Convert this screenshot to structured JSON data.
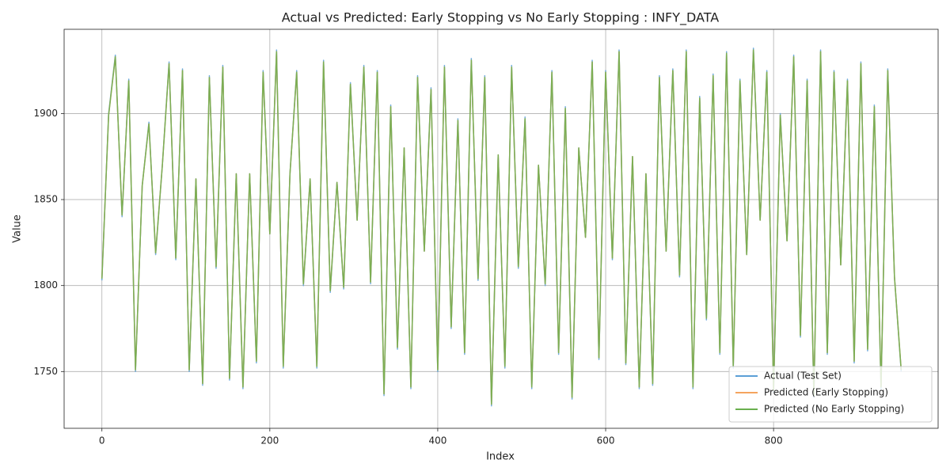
{
  "chart_data": {
    "type": "line",
    "title": "Actual vs Predicted: Early Stopping vs No Early Stopping : INFY_DATA",
    "x_label": "Index",
    "y_label": "Value",
    "x": [
      0,
      8,
      16,
      24,
      32,
      40,
      48,
      56,
      64,
      72,
      80,
      88,
      96,
      104,
      112,
      120,
      128,
      136,
      144,
      152,
      160,
      168,
      176,
      184,
      192,
      200,
      208,
      216,
      224,
      232,
      240,
      248,
      256,
      264,
      272,
      280,
      288,
      296,
      304,
      312,
      320,
      328,
      336,
      344,
      352,
      360,
      368,
      376,
      384,
      392,
      400,
      408,
      416,
      424,
      432,
      440,
      448,
      456,
      464,
      472,
      480,
      488,
      496,
      504,
      512,
      520,
      528,
      536,
      544,
      552,
      560,
      568,
      576,
      584,
      592,
      600,
      608,
      616,
      624,
      632,
      640,
      648,
      656,
      664,
      672,
      680,
      688,
      696,
      704,
      712,
      720,
      728,
      736,
      744,
      752,
      760,
      768,
      776,
      784,
      792,
      800,
      808,
      816,
      824,
      832,
      840,
      848,
      856,
      864,
      872,
      880,
      888,
      896,
      904,
      912,
      920,
      928,
      936,
      944,
      952
    ],
    "series": [
      {
        "name": "Actual (Test Set)",
        "color": "#5b9fd6",
        "values": [
          1803,
          1900,
          1934,
          1840,
          1920,
          1750,
          1858,
          1895,
          1818,
          1870,
          1930,
          1815,
          1926,
          1750,
          1862,
          1742,
          1922,
          1810,
          1928,
          1745,
          1865,
          1740,
          1865,
          1755,
          1925,
          1830,
          1937,
          1752,
          1865,
          1925,
          1800,
          1862,
          1752,
          1931,
          1796,
          1860,
          1798,
          1918,
          1838,
          1928,
          1801,
          1925,
          1736,
          1905,
          1763,
          1880,
          1740,
          1922,
          1820,
          1915,
          1750,
          1928,
          1775,
          1897,
          1760,
          1932,
          1803,
          1922,
          1730,
          1876,
          1752,
          1928,
          1810,
          1898,
          1740,
          1870,
          1800,
          1925,
          1760,
          1904,
          1734,
          1880,
          1828,
          1931,
          1757,
          1925,
          1815,
          1937,
          1754,
          1875,
          1740,
          1865,
          1742,
          1922,
          1820,
          1926,
          1805,
          1937,
          1740,
          1910,
          1780,
          1923,
          1760,
          1936,
          1752,
          1920,
          1818,
          1938,
          1838,
          1925,
          1738,
          1900,
          1826,
          1934,
          1770,
          1920,
          1735,
          1937,
          1760,
          1925,
          1812,
          1920,
          1755,
          1930,
          1762,
          1905,
          1740,
          1926,
          1805,
          1750
        ]
      },
      {
        "name": "Predicted (Early Stopping)",
        "color": "#f5a45e",
        "values": [
          1804,
          1899,
          1933,
          1841,
          1919,
          1751,
          1858,
          1894,
          1819,
          1870,
          1929,
          1816,
          1925,
          1751,
          1862,
          1743,
          1921,
          1811,
          1927,
          1746,
          1865,
          1741,
          1865,
          1756,
          1924,
          1830,
          1936,
          1753,
          1865,
          1924,
          1801,
          1862,
          1753,
          1930,
          1797,
          1860,
          1799,
          1917,
          1838,
          1927,
          1802,
          1924,
          1737,
          1904,
          1764,
          1880,
          1741,
          1921,
          1820,
          1914,
          1751,
          1927,
          1776,
          1896,
          1761,
          1931,
          1804,
          1921,
          1731,
          1876,
          1753,
          1927,
          1811,
          1897,
          1741,
          1870,
          1801,
          1924,
          1761,
          1903,
          1735,
          1880,
          1828,
          1930,
          1758,
          1924,
          1816,
          1936,
          1755,
          1875,
          1741,
          1865,
          1743,
          1921,
          1820,
          1925,
          1806,
          1936,
          1741,
          1909,
          1781,
          1922,
          1761,
          1935,
          1753,
          1919,
          1818,
          1937,
          1838,
          1924,
          1739,
          1899,
          1826,
          1933,
          1771,
          1919,
          1736,
          1936,
          1761,
          1924,
          1812,
          1919,
          1756,
          1929,
          1763,
          1904,
          1741,
          1925,
          1805,
          1751
        ]
      },
      {
        "name": "Predicted (No Early Stopping)",
        "color": "#6aaf4e",
        "values": [
          1804,
          1899,
          1933,
          1841,
          1919,
          1751,
          1858,
          1894,
          1819,
          1870,
          1929,
          1816,
          1925,
          1751,
          1862,
          1743,
          1921,
          1811,
          1927,
          1746,
          1865,
          1741,
          1865,
          1756,
          1924,
          1830,
          1936,
          1753,
          1865,
          1924,
          1801,
          1862,
          1753,
          1930,
          1797,
          1860,
          1799,
          1917,
          1838,
          1927,
          1802,
          1924,
          1737,
          1904,
          1764,
          1880,
          1741,
          1921,
          1820,
          1914,
          1751,
          1927,
          1776,
          1896,
          1761,
          1931,
          1804,
          1921,
          1731,
          1876,
          1753,
          1927,
          1811,
          1897,
          1741,
          1870,
          1801,
          1924,
          1761,
          1903,
          1735,
          1880,
          1828,
          1930,
          1758,
          1924,
          1816,
          1936,
          1755,
          1875,
          1741,
          1865,
          1743,
          1921,
          1820,
          1925,
          1806,
          1936,
          1741,
          1909,
          1781,
          1922,
          1761,
          1935,
          1753,
          1919,
          1818,
          1937,
          1838,
          1924,
          1739,
          1899,
          1826,
          1933,
          1771,
          1919,
          1736,
          1936,
          1761,
          1924,
          1812,
          1919,
          1756,
          1929,
          1763,
          1904,
          1741,
          1925,
          1805,
          1751
        ]
      }
    ],
    "xlim": [
      -45,
      996
    ],
    "xticks": [
      0,
      200,
      400,
      600,
      800
    ],
    "ylim": [
      1717,
      1949
    ],
    "yticks": [
      1750,
      1800,
      1850,
      1900
    ],
    "grid": true,
    "legend": "lower right"
  }
}
